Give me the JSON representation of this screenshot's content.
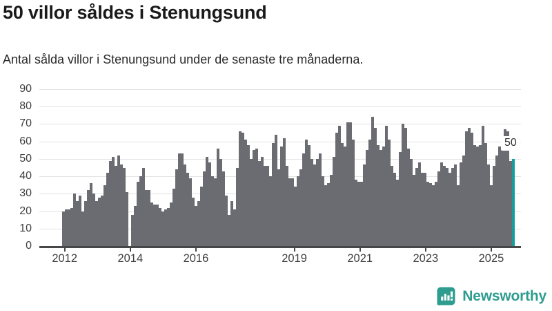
{
  "title": "50 villor såldes i Stenungsund",
  "subtitle": "Antal sålda villor i Stenungsund under de senaste tre månaderna.",
  "annotation": {
    "label": "50"
  },
  "branding": {
    "name": "Newsworthy"
  },
  "colors": {
    "bar": "#6b6b72",
    "highlight": "#189b9b",
    "brand_teal": "#2e9c8f",
    "axis": "#47474a",
    "gridline": "#e3e3e3",
    "title_text": "#1a1a1a",
    "tick_text": "#3f3f3f"
  },
  "chart_data": {
    "type": "bar",
    "title": "50 villor såldes i Stenungsund",
    "subtitle": "Antal sålda villor i Stenungsund under de senaste tre månaderna.",
    "x_unit": "month",
    "x_start": "2012-01",
    "x_interval_months": 1,
    "ylim": [
      0,
      90
    ],
    "y_ticks": [
      0,
      10,
      20,
      30,
      40,
      50,
      60,
      70,
      80,
      90
    ],
    "grid": "horizontal",
    "legend": "none",
    "x_ticks": [
      {
        "label": "2012",
        "year_offset": 0
      },
      {
        "label": "2014",
        "year_offset": 2
      },
      {
        "label": "2016",
        "year_offset": 4
      },
      {
        "label": "2019",
        "year_offset": 7
      },
      {
        "label": "2021",
        "year_offset": 9
      },
      {
        "label": "2023",
        "year_offset": 11
      },
      {
        "label": "2025",
        "year_offset": 13
      }
    ],
    "values": [
      20,
      21,
      21,
      22,
      30,
      26,
      29,
      20,
      26,
      32,
      36,
      30,
      26,
      28,
      29,
      35,
      42,
      49,
      51,
      46,
      52,
      47,
      45,
      31,
      0,
      18,
      23,
      37,
      40,
      45,
      32,
      32,
      25,
      24,
      24,
      22,
      20,
      21,
      22,
      25,
      33,
      44,
      53,
      53,
      47,
      42,
      39,
      28,
      23,
      26,
      34,
      43,
      51,
      48,
      40,
      39,
      56,
      50,
      43,
      29,
      18,
      26,
      21,
      45,
      66,
      65,
      61,
      58,
      50,
      55,
      56,
      49,
      51,
      46,
      46,
      40,
      59,
      64,
      44,
      57,
      62,
      46,
      39,
      39,
      34,
      40,
      44,
      53,
      61,
      58,
      50,
      47,
      50,
      53,
      40,
      35,
      36,
      41,
      51,
      65,
      69,
      59,
      57,
      71,
      71,
      61,
      38,
      37,
      37,
      47,
      55,
      61,
      74,
      68,
      58,
      55,
      57,
      69,
      61,
      46,
      42,
      38,
      54,
      70,
      68,
      56,
      50,
      41,
      45,
      48,
      42,
      42,
      37,
      36,
      35,
      37,
      43,
      48,
      46,
      45,
      42,
      45,
      47,
      35,
      48,
      52,
      66,
      68,
      65,
      58,
      57,
      58,
      69,
      59,
      47,
      35,
      46,
      52,
      57,
      62,
      67,
      66,
      49,
      50
    ],
    "highlight": {
      "index_from_end": 1,
      "value": 50,
      "label": "50"
    }
  }
}
